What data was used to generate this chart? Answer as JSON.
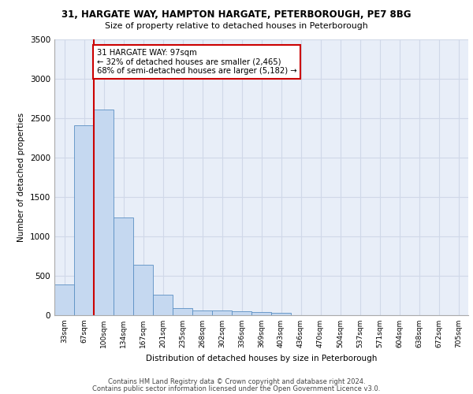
{
  "title1": "31, HARGATE WAY, HAMPTON HARGATE, PETERBOROUGH, PE7 8BG",
  "title2": "Size of property relative to detached houses in Peterborough",
  "xlabel": "Distribution of detached houses by size in Peterborough",
  "ylabel": "Number of detached properties",
  "categories": [
    "33sqm",
    "67sqm",
    "100sqm",
    "134sqm",
    "167sqm",
    "201sqm",
    "235sqm",
    "268sqm",
    "302sqm",
    "336sqm",
    "369sqm",
    "403sqm",
    "436sqm",
    "470sqm",
    "504sqm",
    "537sqm",
    "571sqm",
    "604sqm",
    "638sqm",
    "672sqm",
    "705sqm"
  ],
  "bar_heights": [
    390,
    2410,
    2610,
    1240,
    640,
    260,
    95,
    65,
    60,
    55,
    40,
    35,
    0,
    0,
    0,
    0,
    0,
    0,
    0,
    0,
    0
  ],
  "bar_color": "#c5d8f0",
  "bar_edge_color": "#5a8fc3",
  "grid_color": "#d0d8e8",
  "background_color": "#e8eef8",
  "vline_color": "#cc0000",
  "annotation_text": "31 HARGATE WAY: 97sqm\n← 32% of detached houses are smaller (2,465)\n68% of semi-detached houses are larger (5,182) →",
  "annotation_box_color": "#cc0000",
  "ylim": [
    0,
    3500
  ],
  "yticks": [
    0,
    500,
    1000,
    1500,
    2000,
    2500,
    3000,
    3500
  ],
  "footer1": "Contains HM Land Registry data © Crown copyright and database right 2024.",
  "footer2": "Contains public sector information licensed under the Open Government Licence v3.0."
}
